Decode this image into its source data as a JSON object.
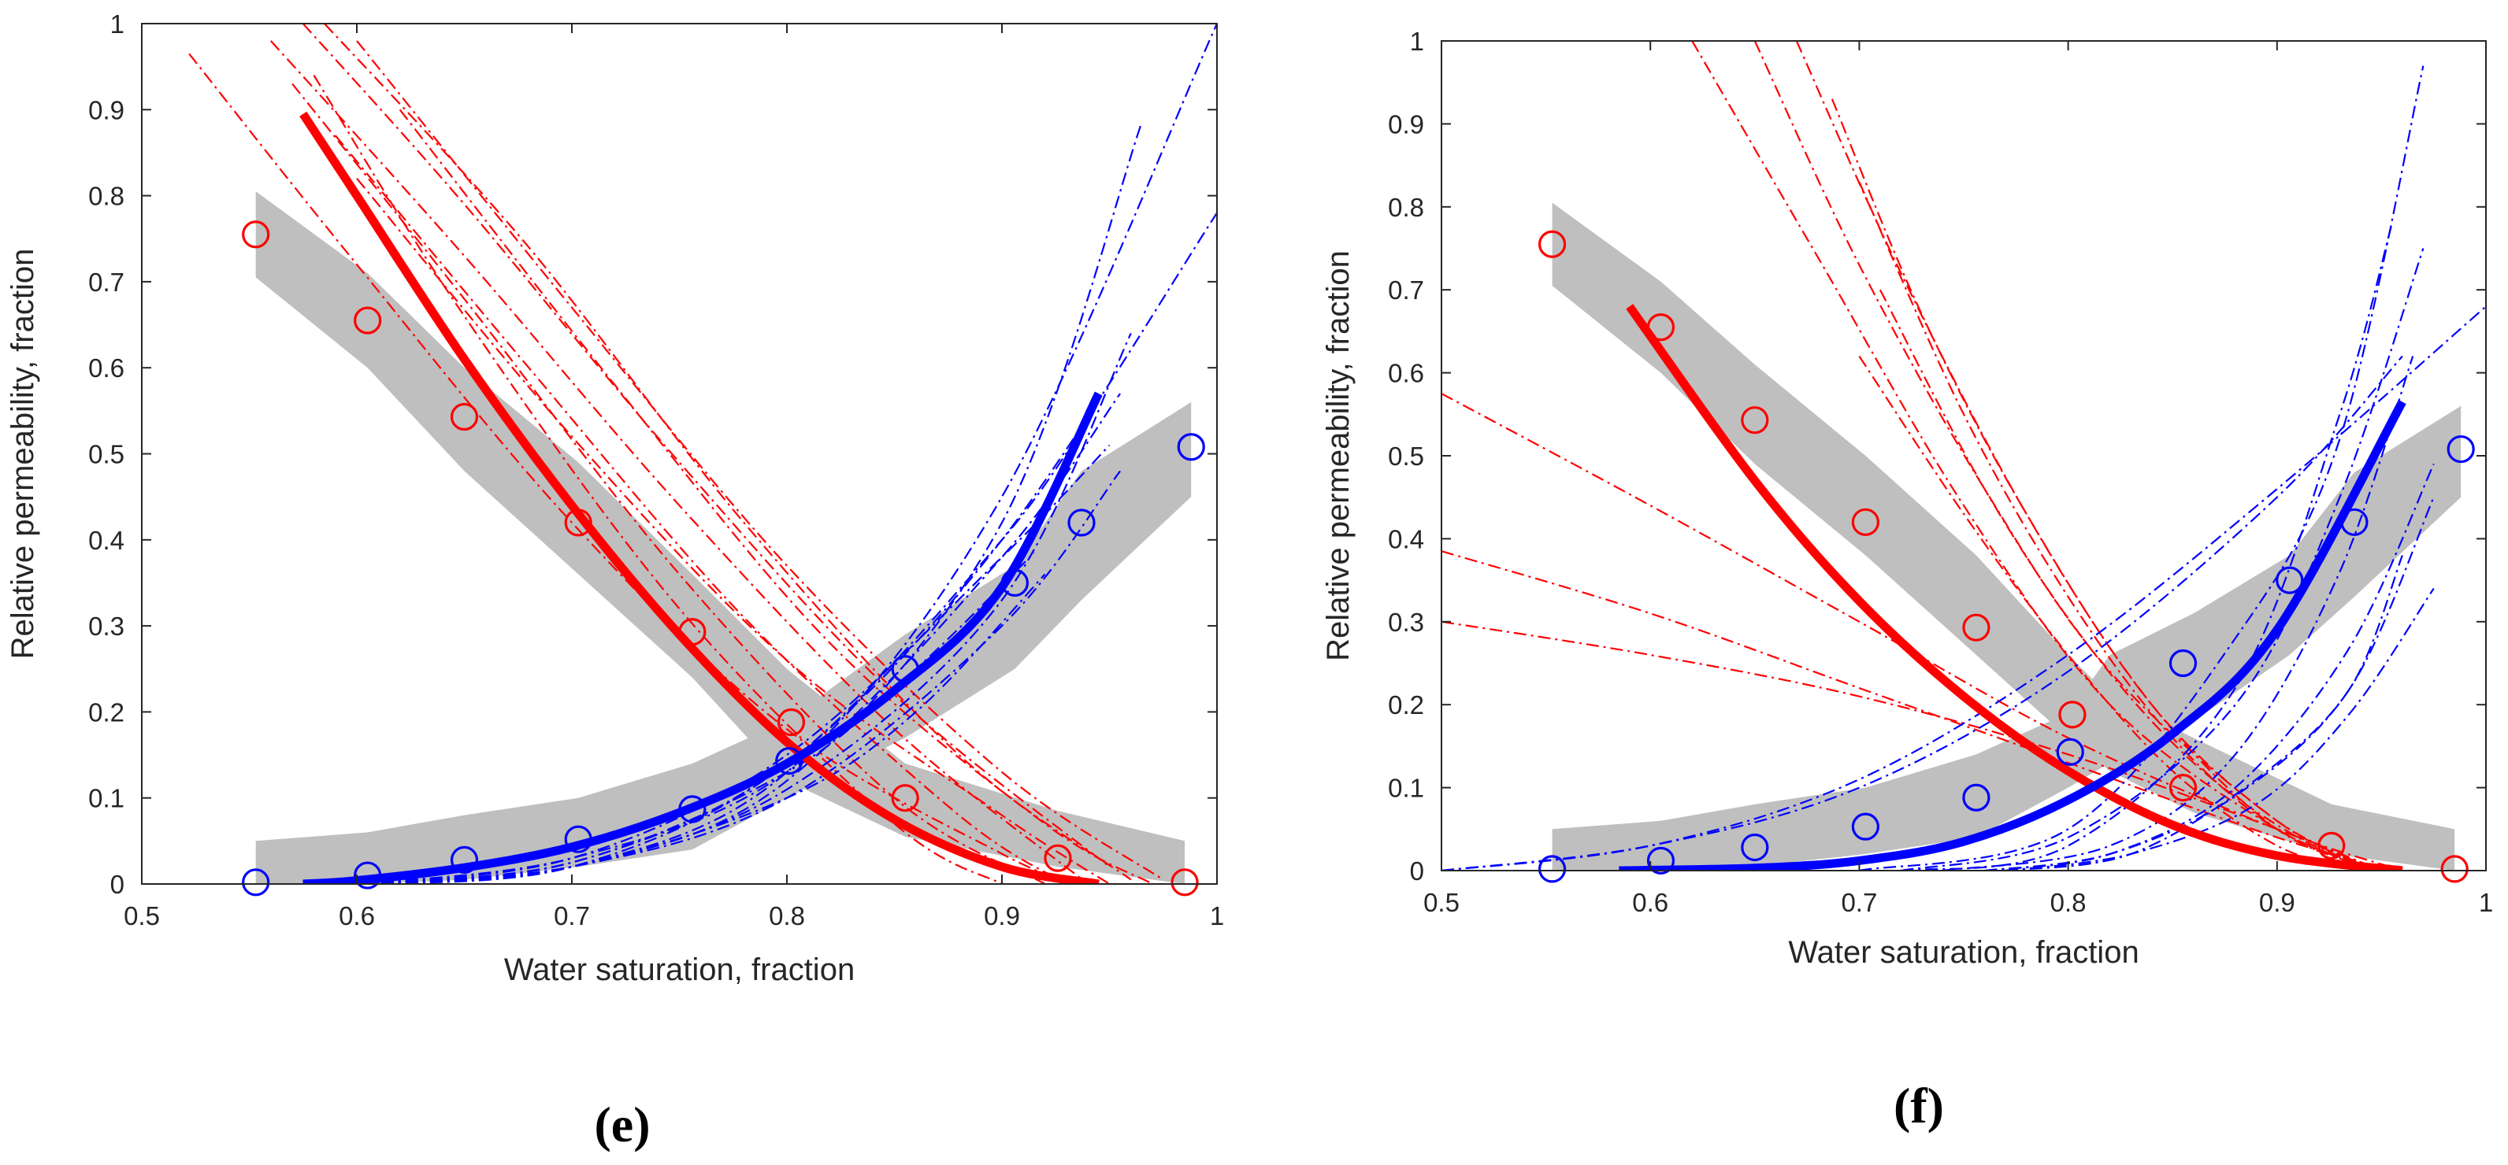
{
  "figure": {
    "captions": [
      "(e)",
      "(f)"
    ]
  },
  "colors": {
    "oil": "#ff0000",
    "water": "#0000ff",
    "band": "#bfbfbf",
    "axis": "#262626"
  },
  "chart_data": [
    {
      "type": "line",
      "panel_id": "e",
      "caption": "(e)",
      "xlabel": "Water saturation, fraction",
      "ylabel": "Relative permeability, fraction",
      "xlim": [
        0.5,
        1
      ],
      "ylim": [
        0,
        1
      ],
      "xticks": [
        0.5,
        0.6,
        0.7,
        0.8,
        0.9,
        1
      ],
      "xtick_labels": [
        "0.5",
        "0.6",
        "0.7",
        "0.8",
        "0.9",
        "1"
      ],
      "yticks": [
        0,
        0.1,
        0.2,
        0.3,
        0.4,
        0.5,
        0.6,
        0.7,
        0.8,
        0.9,
        1
      ],
      "ytick_labels": [
        "0",
        "0.1",
        "0.2",
        "0.3",
        "0.4",
        "0.5",
        "0.6",
        "0.7",
        "0.8",
        "0.9",
        "1"
      ],
      "oil_band": {
        "x": [
          0.553,
          0.605,
          0.65,
          0.703,
          0.756,
          0.8,
          0.855,
          0.926,
          0.985
        ],
        "lower": [
          0.705,
          0.6,
          0.48,
          0.36,
          0.24,
          0.12,
          0.055,
          0.02,
          0.0
        ],
        "upper": [
          0.805,
          0.71,
          0.6,
          0.49,
          0.36,
          0.25,
          0.14,
          0.085,
          0.05
        ]
      },
      "water_band": {
        "x": [
          0.553,
          0.605,
          0.65,
          0.703,
          0.756,
          0.8,
          0.855,
          0.906,
          0.937,
          0.988
        ],
        "lower": [
          0.0,
          0.0,
          0.005,
          0.02,
          0.04,
          0.1,
          0.17,
          0.25,
          0.33,
          0.45
        ],
        "upper": [
          0.05,
          0.06,
          0.08,
          0.1,
          0.14,
          0.19,
          0.29,
          0.37,
          0.48,
          0.56
        ]
      },
      "oil_measured": {
        "x": [
          0.553,
          0.605,
          0.65,
          0.703,
          0.756,
          0.802,
          0.855,
          0.926,
          0.985
        ],
        "y": [
          0.755,
          0.655,
          0.543,
          0.42,
          0.293,
          0.188,
          0.1,
          0.03,
          0.002
        ]
      },
      "water_measured": {
        "x": [
          0.553,
          0.605,
          0.65,
          0.703,
          0.756,
          0.801,
          0.855,
          0.906,
          0.937,
          0.988
        ],
        "y": [
          0.002,
          0.01,
          0.028,
          0.052,
          0.087,
          0.143,
          0.25,
          0.35,
          0.42,
          0.508
        ]
      },
      "oil_fit": {
        "x": [
          0.575,
          0.6,
          0.65,
          0.7,
          0.75,
          0.8,
          0.85,
          0.9,
          0.945
        ],
        "y": [
          0.895,
          0.8,
          0.61,
          0.44,
          0.29,
          0.165,
          0.075,
          0.02,
          0.0
        ]
      },
      "water_fit": {
        "x": [
          0.575,
          0.6,
          0.65,
          0.7,
          0.75,
          0.8,
          0.85,
          0.9,
          0.945
        ],
        "y": [
          0.0,
          0.004,
          0.019,
          0.043,
          0.083,
          0.14,
          0.225,
          0.345,
          0.57
        ]
      },
      "oil_realizations": [
        {
          "x": [
            0.522,
            0.6,
            0.7,
            0.8,
            0.9,
            0.935
          ],
          "y": [
            0.965,
            0.72,
            0.42,
            0.18,
            0.035,
            0.0
          ]
        },
        {
          "x": [
            0.56,
            0.65,
            0.75,
            0.85,
            0.94
          ],
          "y": [
            0.98,
            0.73,
            0.44,
            0.18,
            0.0
          ]
        },
        {
          "x": [
            0.575,
            0.65,
            0.75,
            0.85,
            0.95
          ],
          "y": [
            1.0,
            0.79,
            0.49,
            0.22,
            0.02
          ]
        },
        {
          "x": [
            0.585,
            0.68,
            0.78,
            0.88,
            0.96
          ],
          "y": [
            1.0,
            0.74,
            0.42,
            0.15,
            0.005
          ]
        },
        {
          "x": [
            0.6,
            0.7,
            0.8,
            0.9,
            0.975
          ],
          "y": [
            0.98,
            0.67,
            0.37,
            0.13,
            0.005
          ]
        },
        {
          "x": [
            0.57,
            0.65,
            0.75,
            0.85,
            0.92
          ],
          "y": [
            0.93,
            0.68,
            0.36,
            0.1,
            0.0
          ]
        },
        {
          "x": [
            0.59,
            0.68,
            0.78,
            0.88,
            0.93
          ],
          "y": [
            0.87,
            0.6,
            0.31,
            0.08,
            0.0
          ]
        },
        {
          "x": [
            0.58,
            0.65,
            0.75,
            0.85,
            0.9
          ],
          "y": [
            0.94,
            0.66,
            0.32,
            0.07,
            0.0
          ]
        },
        {
          "x": [
            0.6,
            0.7,
            0.8,
            0.9,
            0.95
          ],
          "y": [
            0.82,
            0.52,
            0.26,
            0.08,
            0.0
          ]
        },
        {
          "x": [
            0.62,
            0.72,
            0.82,
            0.92,
            0.97
          ],
          "y": [
            0.9,
            0.58,
            0.28,
            0.07,
            0.0
          ]
        }
      ],
      "water_realizations": [
        {
          "x": [
            0.6,
            0.7,
            0.8,
            0.9,
            0.965
          ],
          "y": [
            0.0,
            0.02,
            0.12,
            0.42,
            0.885
          ]
        },
        {
          "x": [
            0.6,
            0.7,
            0.8,
            0.9,
            1.0
          ],
          "y": [
            0.0,
            0.02,
            0.13,
            0.45,
            1.0
          ]
        },
        {
          "x": [
            0.6,
            0.7,
            0.8,
            0.9,
            1.0
          ],
          "y": [
            0.0,
            0.02,
            0.14,
            0.4,
            0.78
          ]
        },
        {
          "x": [
            0.6,
            0.7,
            0.8,
            0.9,
            0.955
          ],
          "y": [
            0.0,
            0.03,
            0.13,
            0.38,
            0.57
          ]
        },
        {
          "x": [
            0.6,
            0.7,
            0.8,
            0.9,
            0.955
          ],
          "y": [
            0.0,
            0.02,
            0.1,
            0.3,
            0.48
          ]
        },
        {
          "x": [
            0.6,
            0.7,
            0.8,
            0.9,
            0.95
          ],
          "y": [
            0.0,
            0.03,
            0.15,
            0.38,
            0.51
          ]
        },
        {
          "x": [
            0.6,
            0.7,
            0.8,
            0.86,
            0.915
          ],
          "y": [
            0.0,
            0.025,
            0.13,
            0.25,
            0.385
          ]
        },
        {
          "x": [
            0.6,
            0.7,
            0.8,
            0.86,
            0.92
          ],
          "y": [
            0.0,
            0.02,
            0.1,
            0.2,
            0.36
          ]
        },
        {
          "x": [
            0.6,
            0.7,
            0.8,
            0.9,
            0.96
          ],
          "y": [
            0.0,
            0.02,
            0.11,
            0.33,
            0.64
          ]
        },
        {
          "x": [
            0.6,
            0.7,
            0.8,
            0.9,
            0.945
          ],
          "y": [
            0.0,
            0.025,
            0.14,
            0.4,
            0.56
          ]
        }
      ]
    },
    {
      "type": "line",
      "panel_id": "f",
      "caption": "(f)",
      "xlabel": "Water saturation, fraction",
      "ylabel": "Relative permeability, fraction",
      "xlim": [
        0.5,
        1
      ],
      "ylim": [
        0,
        1
      ],
      "xticks": [
        0.5,
        0.6,
        0.7,
        0.8,
        0.9,
        1
      ],
      "xtick_labels": [
        "0.5",
        "0.6",
        "0.7",
        "0.8",
        "0.9",
        "1"
      ],
      "yticks": [
        0,
        0.1,
        0.2,
        0.3,
        0.4,
        0.5,
        0.6,
        0.7,
        0.8,
        0.9,
        1
      ],
      "ytick_labels": [
        "0",
        "0.1",
        "0.2",
        "0.3",
        "0.4",
        "0.5",
        "0.6",
        "0.7",
        "0.8",
        "0.9",
        "1"
      ],
      "oil_band": {
        "x": [
          0.553,
          0.605,
          0.65,
          0.703,
          0.756,
          0.8,
          0.82,
          0.86,
          0.926,
          0.985
        ],
        "lower": [
          0.705,
          0.6,
          0.49,
          0.38,
          0.26,
          0.16,
          0.12,
          0.07,
          0.02,
          0.0
        ],
        "upper": [
          0.805,
          0.71,
          0.61,
          0.5,
          0.38,
          0.26,
          0.21,
          0.16,
          0.08,
          0.05
        ]
      },
      "water_band": {
        "x": [
          0.553,
          0.605,
          0.65,
          0.703,
          0.756,
          0.8,
          0.82,
          0.86,
          0.906,
          0.937,
          0.988
        ],
        "lower": [
          0.0,
          0.0,
          0.005,
          0.02,
          0.04,
          0.1,
          0.13,
          0.18,
          0.26,
          0.33,
          0.45
        ],
        "upper": [
          0.05,
          0.06,
          0.08,
          0.1,
          0.14,
          0.19,
          0.26,
          0.31,
          0.38,
          0.48,
          0.56
        ]
      },
      "oil_measured": {
        "x": [
          0.553,
          0.605,
          0.65,
          0.703,
          0.756,
          0.802,
          0.855,
          0.926,
          0.985
        ],
        "y": [
          0.755,
          0.655,
          0.543,
          0.42,
          0.293,
          0.188,
          0.1,
          0.03,
          0.002
        ]
      },
      "water_measured": {
        "x": [
          0.553,
          0.605,
          0.65,
          0.703,
          0.756,
          0.801,
          0.855,
          0.906,
          0.937,
          0.988
        ],
        "y": [
          0.002,
          0.012,
          0.028,
          0.053,
          0.088,
          0.143,
          0.25,
          0.35,
          0.42,
          0.508
        ]
      },
      "oil_fit": {
        "x": [
          0.59,
          0.65,
          0.7,
          0.75,
          0.8,
          0.85,
          0.9,
          0.96
        ],
        "y": [
          0.68,
          0.47,
          0.325,
          0.21,
          0.12,
          0.055,
          0.018,
          0.0
        ]
      },
      "water_fit": {
        "x": [
          0.585,
          0.65,
          0.7,
          0.75,
          0.8,
          0.85,
          0.9,
          0.96
        ],
        "y": [
          0.0,
          0.003,
          0.012,
          0.035,
          0.085,
          0.165,
          0.29,
          0.565
        ]
      },
      "oil_realizations": [
        {
          "x": [
            0.5,
            0.6,
            0.7,
            0.8,
            0.9,
            0.96
          ],
          "y": [
            0.575,
            0.44,
            0.3,
            0.16,
            0.05,
            0.0
          ]
        },
        {
          "x": [
            0.5,
            0.6,
            0.7,
            0.8,
            0.9,
            0.955
          ],
          "y": [
            0.385,
            0.31,
            0.22,
            0.13,
            0.04,
            0.0
          ]
        },
        {
          "x": [
            0.5,
            0.6,
            0.7,
            0.8,
            0.9,
            0.95
          ],
          "y": [
            0.3,
            0.26,
            0.21,
            0.14,
            0.05,
            0.0
          ]
        },
        {
          "x": [
            0.62,
            0.68,
            0.75,
            0.82,
            0.9,
            0.95
          ],
          "y": [
            1.0,
            0.74,
            0.44,
            0.2,
            0.05,
            0.0
          ]
        },
        {
          "x": [
            0.65,
            0.7,
            0.76,
            0.82,
            0.9,
            0.95
          ],
          "y": [
            1.0,
            0.73,
            0.46,
            0.24,
            0.06,
            0.0
          ]
        },
        {
          "x": [
            0.67,
            0.72,
            0.78,
            0.84,
            0.9,
            0.95
          ],
          "y": [
            1.0,
            0.72,
            0.43,
            0.2,
            0.05,
            0.0
          ]
        },
        {
          "x": [
            0.687,
            0.73,
            0.78,
            0.84,
            0.9,
            0.95
          ],
          "y": [
            0.93,
            0.67,
            0.43,
            0.2,
            0.06,
            0.0
          ]
        },
        {
          "x": [
            0.7,
            0.75,
            0.8,
            0.85,
            0.9,
            0.95
          ],
          "y": [
            0.83,
            0.55,
            0.33,
            0.16,
            0.05,
            0.0
          ]
        },
        {
          "x": [
            0.71,
            0.76,
            0.81,
            0.86,
            0.91,
            0.95
          ],
          "y": [
            0.7,
            0.46,
            0.27,
            0.13,
            0.04,
            0.0
          ]
        },
        {
          "x": [
            0.7,
            0.75,
            0.8,
            0.85,
            0.9,
            0.94
          ],
          "y": [
            0.62,
            0.43,
            0.26,
            0.12,
            0.03,
            0.0
          ]
        }
      ],
      "water_realizations": [
        {
          "x": [
            0.5,
            0.6,
            0.7,
            0.8,
            0.9,
            0.96
          ],
          "y": [
            0.0,
            0.03,
            0.1,
            0.24,
            0.45,
            0.62
          ]
        },
        {
          "x": [
            0.5,
            0.6,
            0.7,
            0.8,
            0.9,
            1.0
          ],
          "y": [
            0.0,
            0.03,
            0.11,
            0.26,
            0.46,
            0.68
          ]
        },
        {
          "x": [
            0.7,
            0.8,
            0.88,
            0.93,
            0.97
          ],
          "y": [
            0.0,
            0.05,
            0.28,
            0.52,
            0.97
          ]
        },
        {
          "x": [
            0.72,
            0.8,
            0.88,
            0.93,
            0.955
          ],
          "y": [
            0.0,
            0.03,
            0.22,
            0.55,
            0.78
          ]
        },
        {
          "x": [
            0.72,
            0.8,
            0.88,
            0.93,
            0.97
          ],
          "y": [
            0.0,
            0.04,
            0.2,
            0.45,
            0.75
          ]
        },
        {
          "x": [
            0.74,
            0.82,
            0.88,
            0.93,
            0.965
          ],
          "y": [
            0.0,
            0.03,
            0.14,
            0.36,
            0.62
          ]
        },
        {
          "x": [
            0.76,
            0.82,
            0.88,
            0.935,
            0.975
          ],
          "y": [
            0.0,
            0.02,
            0.1,
            0.27,
            0.49
          ]
        },
        {
          "x": [
            0.76,
            0.82,
            0.88,
            0.935,
            0.975
          ],
          "y": [
            0.0,
            0.02,
            0.09,
            0.22,
            0.45
          ]
        },
        {
          "x": [
            0.77,
            0.83,
            0.89,
            0.935,
            0.96
          ],
          "y": [
            0.0,
            0.02,
            0.11,
            0.22,
            0.38
          ]
        },
        {
          "x": [
            0.77,
            0.83,
            0.89,
            0.935,
            0.975
          ],
          "y": [
            0.0,
            0.02,
            0.08,
            0.19,
            0.34
          ]
        }
      ]
    }
  ]
}
